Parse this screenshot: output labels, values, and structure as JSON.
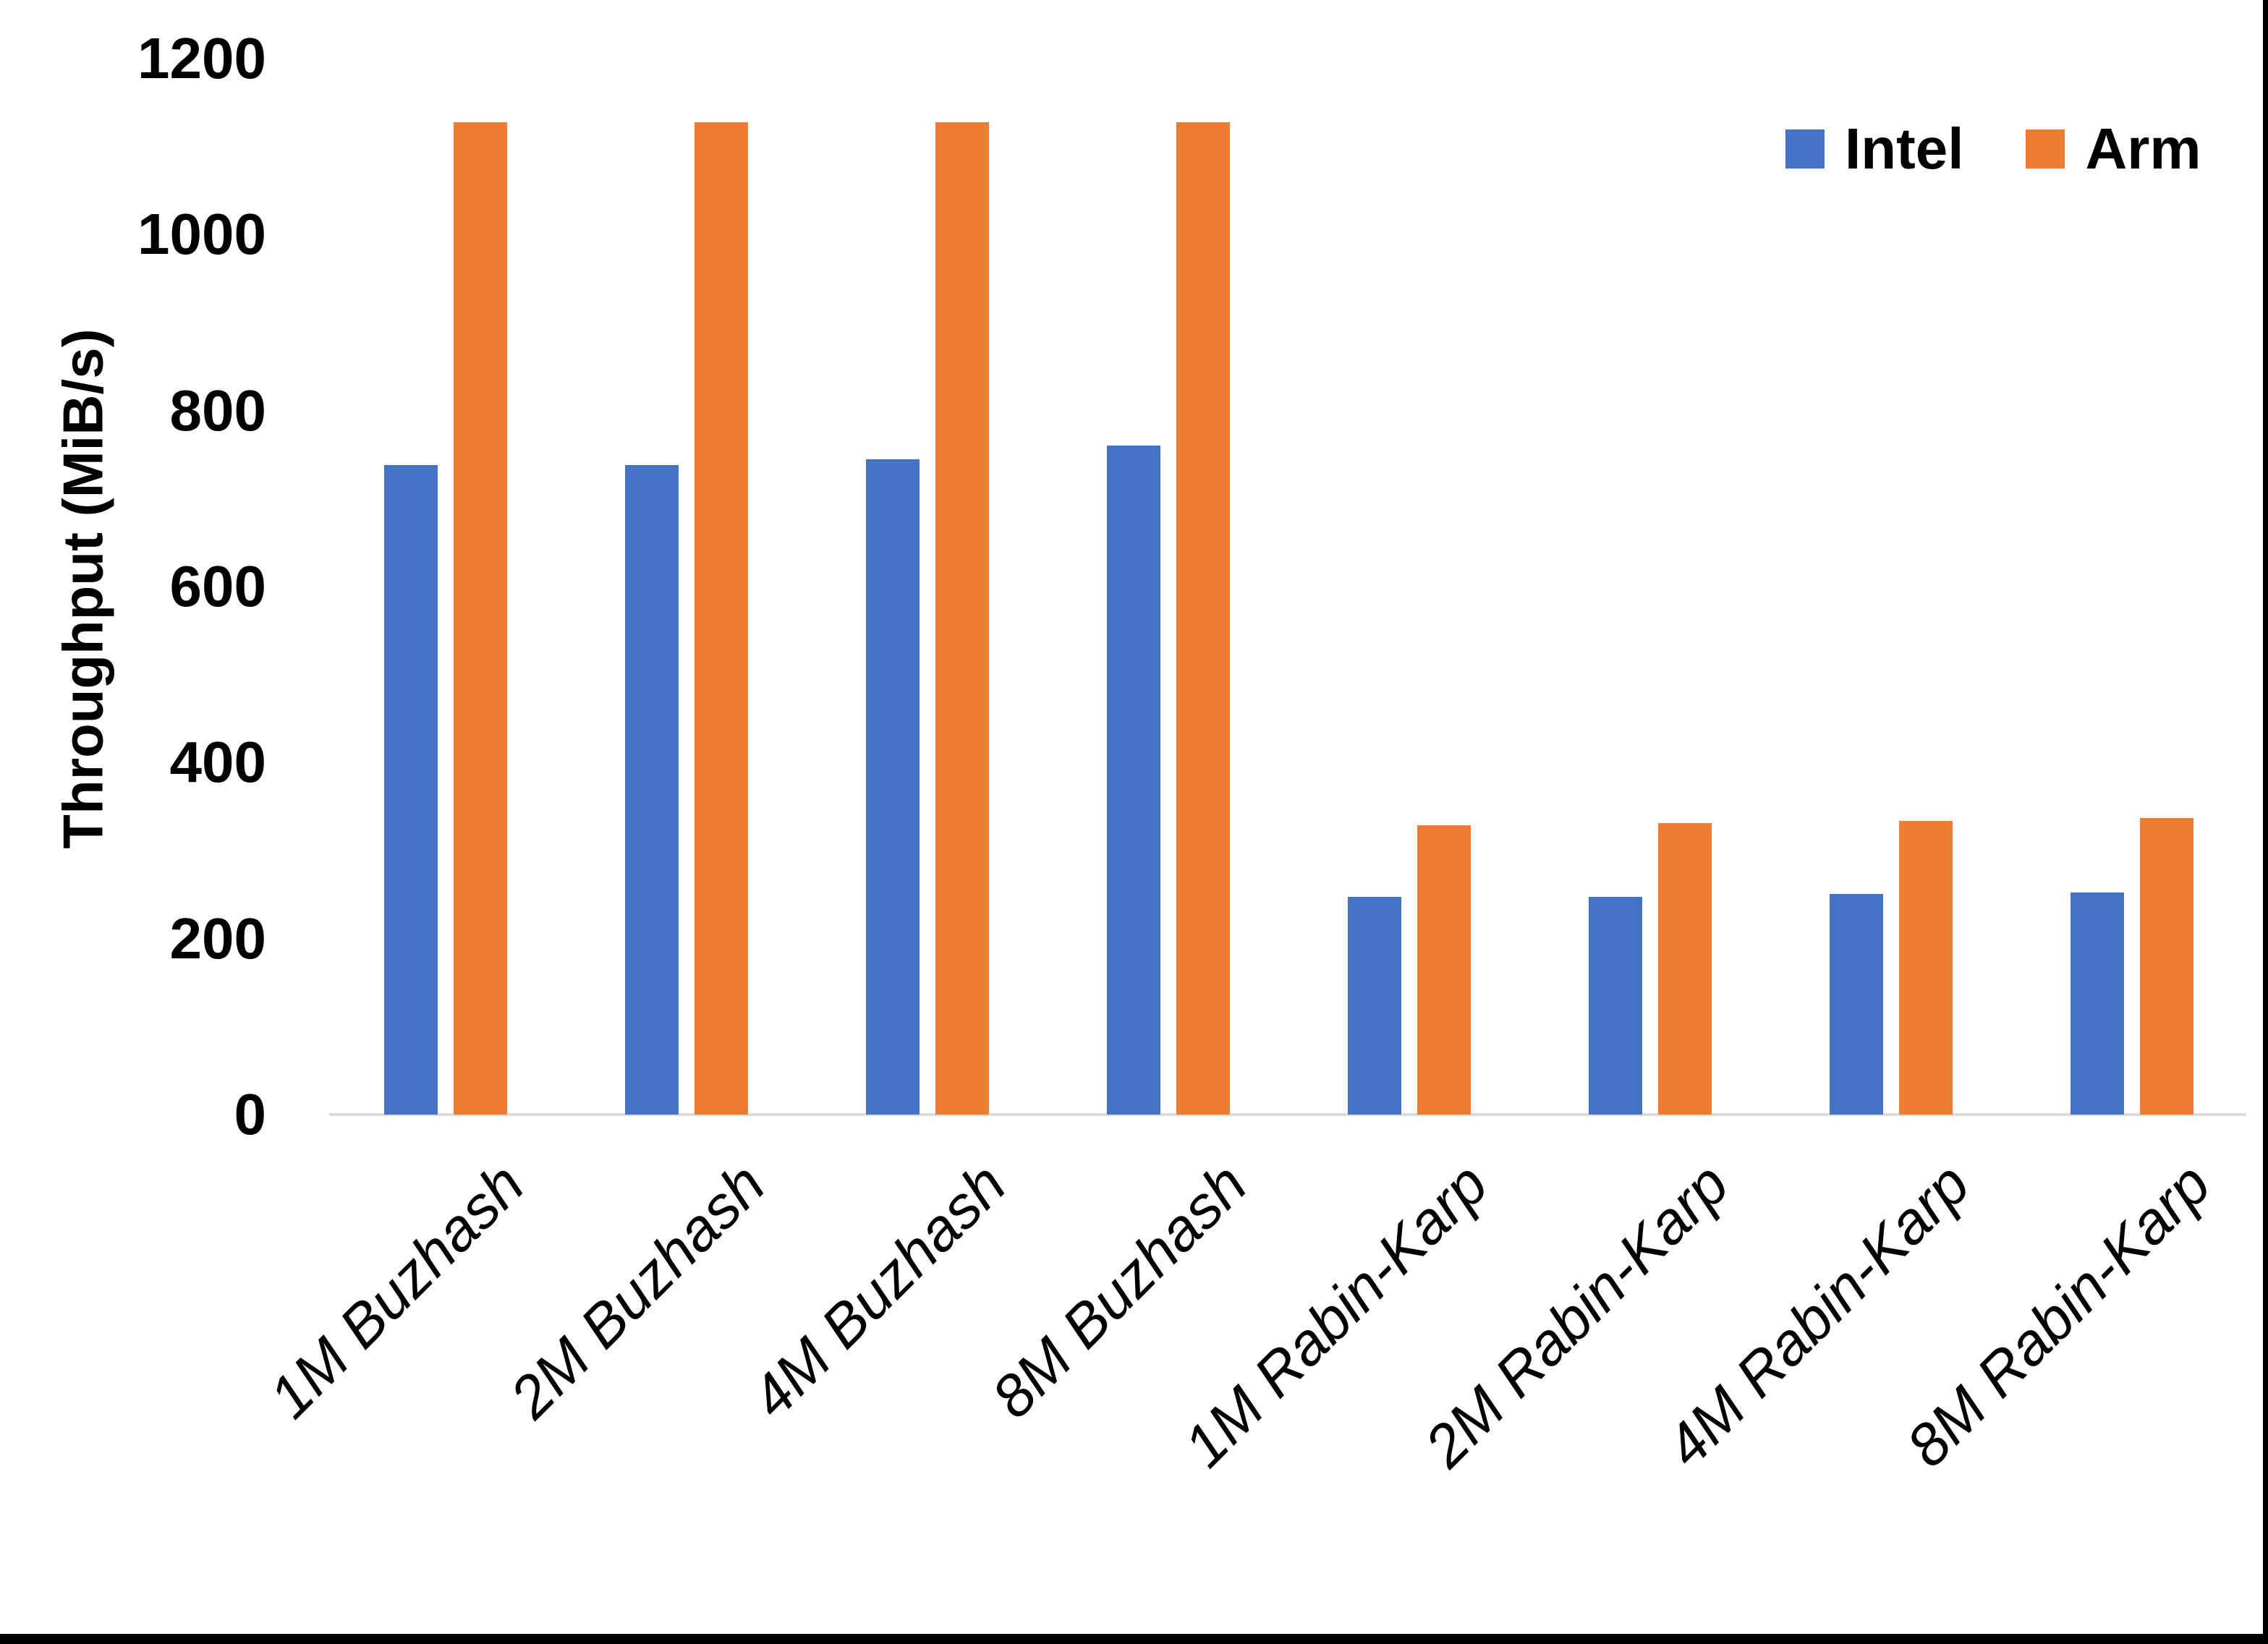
{
  "chart_data": {
    "type": "bar",
    "title": "",
    "xlabel": "",
    "ylabel": "Throughput (MiB/s)",
    "ylim": [
      0,
      1200
    ],
    "yticks": [
      "0",
      "200",
      "400",
      "600",
      "800",
      "1000",
      "1200"
    ],
    "grid": false,
    "legend_position": "top-right",
    "categories": [
      "1M Buzhash",
      "2M Buzhash",
      "4M Buzhash",
      "8M Buzhash",
      "1M Rabin-Karp",
      "2M Rabin-Karp",
      "4M Rabin-Karp",
      "8M Rabin-Karp"
    ],
    "series": [
      {
        "name": "Intel",
        "color": "#4472C4",
        "values": [
          738,
          738,
          745,
          760,
          247,
          247,
          251,
          252
        ]
      },
      {
        "name": "Arm",
        "color": "#ED7D31",
        "values": [
          1128,
          1128,
          1128,
          1128,
          329,
          331,
          334,
          337
        ]
      }
    ]
  }
}
